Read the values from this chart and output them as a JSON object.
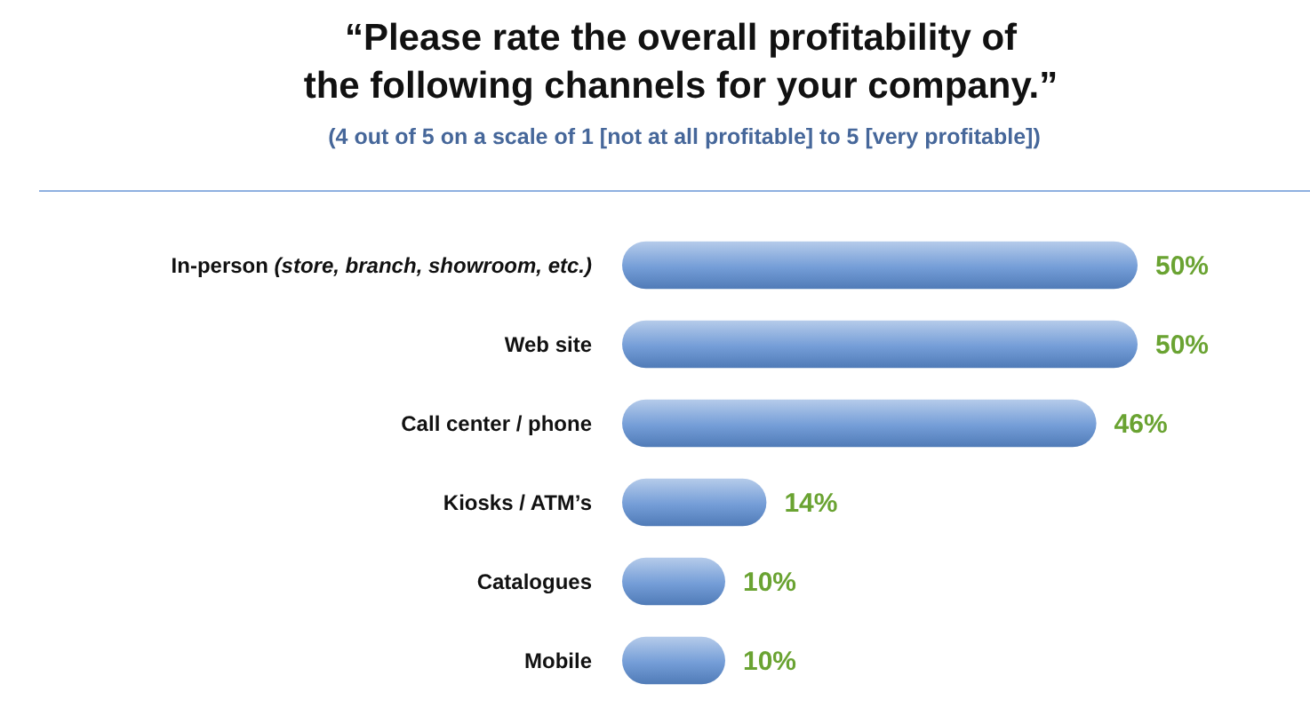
{
  "chart_data": {
    "type": "bar",
    "orientation": "horizontal",
    "title": "“Please rate the overall profitability of\nthe following channels for your company.”",
    "subtitle": "(4 out of 5  on a scale of 1 [not at all profitable] to 5 [very profitable])",
    "categories": [
      "In-person (store, branch, showroom, etc.)",
      "Web site",
      "Call center / phone",
      "Kiosks / ATM’s",
      "Catalogues",
      "Mobile"
    ],
    "values": [
      50,
      50,
      46,
      14,
      10,
      10
    ],
    "value_labels": [
      "50%",
      "50%",
      "46%",
      "14%",
      "10%",
      "10%"
    ],
    "color": "#5b8cd0"
  }
}
